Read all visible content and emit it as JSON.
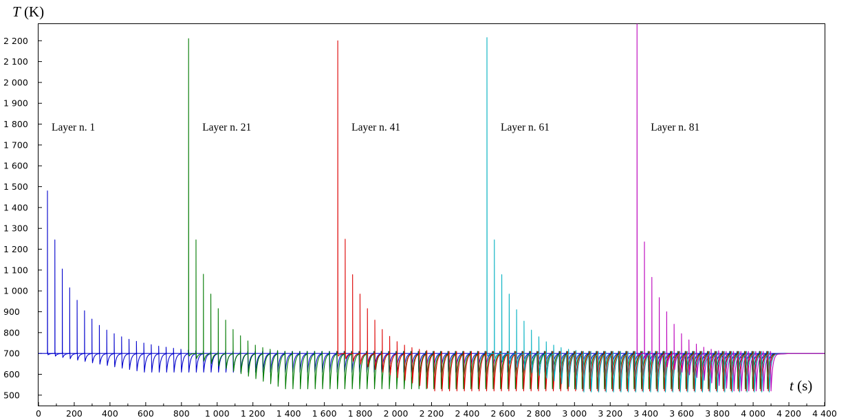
{
  "chart_data": {
    "type": "line",
    "title": "",
    "ylabel": {
      "symbol": "T",
      "unit": "(K)"
    },
    "xlabel": {
      "symbol": "t",
      "unit": "(s)"
    },
    "xlim": [
      0,
      4400
    ],
    "ylim": [
      450,
      2280
    ],
    "baseline": 700,
    "grid": false,
    "x_ticks": [
      0,
      200,
      400,
      600,
      800,
      1000,
      1200,
      1400,
      1600,
      1800,
      2000,
      2200,
      2400,
      2600,
      2800,
      3000,
      3200,
      3400,
      3600,
      3800,
      4000,
      4200,
      4400
    ],
    "x_tick_labels": [
      "0",
      "200",
      "400",
      "600",
      "800",
      "1 000",
      "1 200",
      "1 400",
      "1 600",
      "1 800",
      "2 000",
      "2 200",
      "2 400",
      "2 600",
      "2 800",
      "3 000",
      "3 200",
      "3 400",
      "3 600",
      "3 800",
      "4 000",
      "4 200",
      "4 400"
    ],
    "y_ticks": [
      500,
      600,
      700,
      800,
      900,
      1000,
      1100,
      1200,
      1300,
      1400,
      1500,
      1600,
      1700,
      1800,
      1900,
      2000,
      2100,
      2200
    ],
    "y_tick_labels": [
      "500",
      "600",
      "700",
      "800",
      "900",
      "1 000",
      "1 100",
      "1 200",
      "1 300",
      "1 400",
      "1 500",
      "1 600",
      "1 700",
      "1 800",
      "1 900",
      "2 000",
      "2 100",
      "2 200"
    ],
    "pass_period_s": 41.5,
    "end_time_s": 4110,
    "series": [
      {
        "name": "Layer n. 1",
        "color": "#0000cc",
        "start_time_s": 50,
        "first_peak_K": 1480,
        "peaks_K": [
          1480,
          1245,
          1105,
          1015,
          955,
          905,
          865,
          835,
          812,
          795,
          780,
          768,
          758,
          750,
          742,
          735,
          730,
          725,
          720,
          716,
          713,
          711
        ],
        "min_floor_K": 610
      },
      {
        "name": "Layer n. 21",
        "color": "#007a00",
        "start_time_s": 840,
        "first_peak_K": 2210,
        "peaks_K": [
          2210,
          1245,
          1080,
          985,
          915,
          860,
          815,
          785,
          760,
          740,
          728,
          720,
          714,
          710
        ],
        "min_floor_K": 530
      },
      {
        "name": "Layer n. 41",
        "color": "#dd0000",
        "start_time_s": 1675,
        "first_peak_K": 2200,
        "peaks_K": [
          2200,
          1248,
          1078,
          985,
          915,
          860,
          815,
          782,
          757,
          740,
          728,
          720,
          714,
          710
        ],
        "min_floor_K": 520
      },
      {
        "name": "Layer n. 61",
        "color": "#00b0c0",
        "start_time_s": 2510,
        "first_peak_K": 2215,
        "peaks_K": [
          2215,
          1245,
          1078,
          985,
          910,
          855,
          812,
          780,
          756,
          740,
          728,
          720,
          714
        ],
        "min_floor_K": 515
      },
      {
        "name": "Layer n. 81",
        "color": "#bb00bb",
        "start_time_s": 3350,
        "first_peak_K": 2290,
        "peaks_K": [
          2290,
          1235,
          1065,
          968,
          900,
          840,
          795,
          765,
          745,
          730,
          720,
          713,
          708
        ],
        "min_floor_K": 520
      }
    ]
  }
}
